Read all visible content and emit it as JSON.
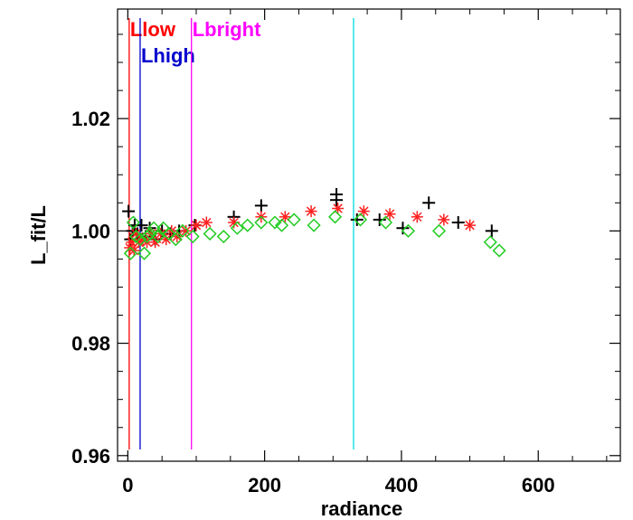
{
  "chart_data": {
    "type": "scatter",
    "title": "",
    "xlabel": "radiance",
    "ylabel": "L_fit/L",
    "xlim": [
      -15,
      720
    ],
    "ylim": [
      0.959,
      1.0395
    ],
    "x_ticks": [
      0,
      200,
      400,
      600
    ],
    "y_ticks": [
      0.96,
      0.98,
      1.0,
      1.02
    ],
    "x_tick_labels": [
      "0",
      "200",
      "400",
      "600"
    ],
    "y_tick_labels": [
      "0.96",
      "0.98",
      "1.00",
      "1.02"
    ],
    "grid": false,
    "vertical_lines": [
      {
        "name": "Llow",
        "x": 2,
        "color": "#ff0000",
        "label_row": 0,
        "label_anchor": "start"
      },
      {
        "name": "Lhigh",
        "x": 18,
        "color": "#0000cc",
        "label_row": 1,
        "label_anchor": "start"
      },
      {
        "name": "Lbright",
        "x": 93,
        "color": "#ff00ff",
        "label_row": 0,
        "label_anchor": "start"
      },
      {
        "name": "",
        "x": 330,
        "color": "#00dddd",
        "label_row": -1,
        "label_anchor": "start"
      }
    ],
    "series": [
      {
        "marker": "plus",
        "color": "#000000",
        "points": [
          [
            1,
            1.0035
          ],
          [
            4,
            0.9985
          ],
          [
            7,
            1.0
          ],
          [
            10,
            1.001
          ],
          [
            14,
            0.9995
          ],
          [
            20,
            1.001
          ],
          [
            26,
            0.999
          ],
          [
            32,
            1.0005
          ],
          [
            40,
            0.9985
          ],
          [
            50,
            1.0
          ],
          [
            62,
            0.9995
          ],
          [
            75,
            1.0
          ],
          [
            98,
            1.001
          ],
          [
            155,
            1.0025
          ],
          [
            195,
            1.0045
          ],
          [
            305,
            1.0065
          ],
          [
            305,
            1.0055
          ],
          [
            335,
            1.002
          ],
          [
            368,
            1.002
          ],
          [
            402,
            1.0005
          ],
          [
            440,
            1.005
          ],
          [
            483,
            1.0015
          ],
          [
            532,
            1.0
          ]
        ]
      },
      {
        "marker": "asterisk",
        "color": "#ff2020",
        "points": [
          [
            3,
            0.997
          ],
          [
            6,
            0.998
          ],
          [
            9,
            0.9965
          ],
          [
            12,
            0.9995
          ],
          [
            16,
            0.998
          ],
          [
            22,
            0.9985
          ],
          [
            28,
            0.998
          ],
          [
            34,
            0.9995
          ],
          [
            40,
            0.998
          ],
          [
            48,
            0.9995
          ],
          [
            56,
            0.9985
          ],
          [
            64,
            1.0
          ],
          [
            72,
            0.999
          ],
          [
            85,
            1.0
          ],
          [
            100,
            1.001
          ],
          [
            115,
            1.0015
          ],
          [
            155,
            1.0015
          ],
          [
            195,
            1.0025
          ],
          [
            230,
            1.0025
          ],
          [
            268,
            1.0035
          ],
          [
            307,
            1.004
          ],
          [
            345,
            1.0035
          ],
          [
            383,
            1.003
          ],
          [
            423,
            1.0025
          ],
          [
            462,
            1.002
          ],
          [
            500,
            1.001
          ]
        ]
      },
      {
        "marker": "diamond",
        "color": "#22cc22",
        "points": [
          [
            4,
            0.996
          ],
          [
            8,
            1.0015
          ],
          [
            12,
            0.999
          ],
          [
            18,
            0.9985
          ],
          [
            24,
            0.996
          ],
          [
            28,
            0.999
          ],
          [
            33,
            0.9995
          ],
          [
            38,
            1.0005
          ],
          [
            44,
            0.999
          ],
          [
            52,
            1.0005
          ],
          [
            60,
            0.9995
          ],
          [
            70,
            0.9985
          ],
          [
            80,
            1.0
          ],
          [
            95,
            0.999
          ],
          [
            120,
            0.9995
          ],
          [
            140,
            0.999
          ],
          [
            160,
            1.0005
          ],
          [
            175,
            1.001
          ],
          [
            195,
            1.0015
          ],
          [
            215,
            1.0015
          ],
          [
            225,
            1.001
          ],
          [
            243,
            1.002
          ],
          [
            272,
            1.001
          ],
          [
            303,
            1.0025
          ],
          [
            340,
            1.002
          ],
          [
            377,
            1.0015
          ],
          [
            410,
            1.0
          ],
          [
            455,
            1.0
          ],
          [
            530,
            0.998
          ],
          [
            543,
            0.9965
          ]
        ]
      }
    ]
  }
}
